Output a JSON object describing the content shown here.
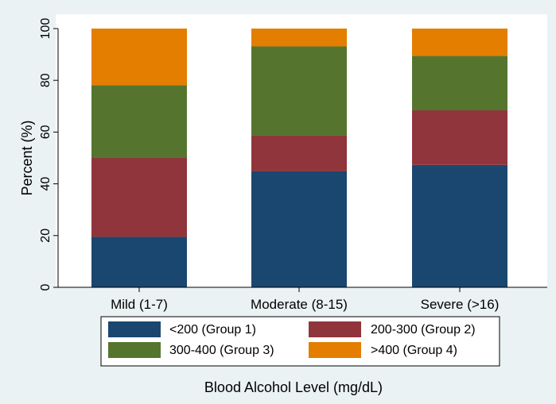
{
  "chart_data": {
    "type": "bar",
    "stacked": true,
    "categories": [
      "Mild (1-7)",
      "Moderate (8-15)",
      "Severe (>16)"
    ],
    "series": [
      {
        "name": "<200 (Group 1)",
        "color": "#1a476f",
        "values": [
          19.5,
          44.8,
          47.3
        ]
      },
      {
        "name": "200-300 (Group 2)",
        "color": "#90353b",
        "values": [
          30.5,
          13.8,
          21.1
        ]
      },
      {
        "name": "300-400 (Group 3)",
        "color": "#55752f",
        "values": [
          28.1,
          34.5,
          21.0
        ]
      },
      {
        "name": ">400 (Group 4)",
        "color": "#e37e00",
        "values": [
          21.9,
          6.9,
          10.6
        ]
      }
    ],
    "xlabel": "Blood Alcohol Level (mg/dL)",
    "ylabel": "Percent (%)",
    "ylim": [
      0,
      100
    ],
    "yticks": [
      0,
      20,
      40,
      60,
      80,
      100
    ],
    "legend": "bottom",
    "grid": false,
    "background_color": "#eaf2f3",
    "plot_background_color": "#ffffff"
  }
}
